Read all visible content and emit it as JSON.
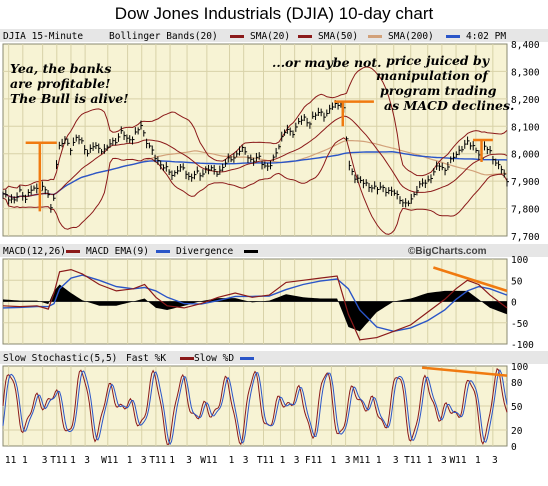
{
  "title": "Dow Jones Industrials (DJIA) 10-day chart",
  "chart_data": [
    {
      "type": "line",
      "panel": "price",
      "legend_text": "DJIA 15-Minute",
      "time_label": "4:02 PM",
      "series": [
        {
          "name": "Bollinger Bands(20)",
          "color": "#8b1a1a"
        },
        {
          "name": "SMA(20)",
          "color": "#8b1a1a"
        },
        {
          "name": "SMA(50)",
          "color": "#d2a17a"
        },
        {
          "name": "SMA(200)",
          "color": "#2a55c8"
        }
      ],
      "ylim": [
        7700,
        8400
      ],
      "y_ticks": [
        "8,400",
        "8,300",
        "8,200",
        "8,100",
        "8,000",
        "7,900",
        "7,800",
        "7,700"
      ],
      "grid": true,
      "annotations": [
        "Yea, the banks",
        "are profitable!",
        "The Bull is alive!",
        "...or maybe not.",
        "price juiced by",
        "manipulation of",
        "program trading",
        "as MACD declines."
      ],
      "price_path": [
        [
          0,
          7850
        ],
        [
          2,
          7840
        ],
        [
          4,
          7830
        ],
        [
          6,
          7860
        ],
        [
          8,
          7840
        ],
        [
          10,
          7870
        ],
        [
          12,
          7870
        ],
        [
          14,
          7880
        ],
        [
          16,
          7850
        ],
        [
          17,
          7790
        ],
        [
          18,
          7850
        ],
        [
          19,
          7980
        ],
        [
          20,
          8030
        ],
        [
          22,
          8050
        ],
        [
          24,
          8020
        ],
        [
          26,
          8060
        ],
        [
          28,
          8040
        ],
        [
          30,
          8000
        ],
        [
          32,
          8030
        ],
        [
          34,
          8020
        ],
        [
          36,
          8010
        ],
        [
          38,
          8040
        ],
        [
          40,
          8050
        ],
        [
          42,
          8080
        ],
        [
          44,
          8050
        ],
        [
          46,
          8060
        ],
        [
          48,
          8090
        ],
        [
          49,
          8110
        ],
        [
          50,
          8060
        ],
        [
          52,
          8020
        ],
        [
          54,
          7980
        ],
        [
          56,
          7960
        ],
        [
          58,
          7940
        ],
        [
          60,
          7920
        ],
        [
          62,
          7950
        ],
        [
          64,
          7940
        ],
        [
          66,
          7910
        ],
        [
          68,
          7930
        ],
        [
          70,
          7920
        ],
        [
          72,
          7950
        ],
        [
          74,
          7940
        ],
        [
          76,
          7930
        ],
        [
          78,
          7960
        ],
        [
          80,
          7980
        ],
        [
          82,
          7990
        ],
        [
          84,
          8020
        ],
        [
          86,
          8000
        ],
        [
          88,
          7970
        ],
        [
          90,
          7990
        ],
        [
          92,
          7960
        ],
        [
          94,
          7950
        ],
        [
          96,
          7990
        ],
        [
          98,
          8050
        ],
        [
          100,
          8090
        ],
        [
          102,
          8070
        ],
        [
          104,
          8110
        ],
        [
          106,
          8130
        ],
        [
          108,
          8110
        ],
        [
          110,
          8140
        ],
        [
          112,
          8150
        ],
        [
          114,
          8140
        ],
        [
          116,
          8170
        ],
        [
          118,
          8180
        ],
        [
          120,
          8190
        ],
        [
          121,
          8100
        ],
        [
          122,
          7960
        ],
        [
          124,
          7920
        ],
        [
          126,
          7900
        ],
        [
          128,
          7890
        ],
        [
          130,
          7880
        ],
        [
          132,
          7870
        ],
        [
          134,
          7880
        ],
        [
          136,
          7860
        ],
        [
          138,
          7860
        ],
        [
          140,
          7840
        ],
        [
          142,
          7810
        ],
        [
          144,
          7830
        ],
        [
          146,
          7870
        ],
        [
          148,
          7890
        ],
        [
          150,
          7900
        ],
        [
          152,
          7930
        ],
        [
          154,
          7960
        ],
        [
          156,
          7940
        ],
        [
          158,
          7970
        ],
        [
          160,
          8000
        ],
        [
          162,
          8020
        ],
        [
          164,
          8040
        ],
        [
          166,
          8030
        ],
        [
          168,
          8000
        ],
        [
          169,
          7970
        ],
        [
          170,
          8030
        ],
        [
          172,
          8010
        ],
        [
          174,
          7960
        ],
        [
          176,
          7950
        ],
        [
          178,
          7900
        ]
      ],
      "orange_marks": [
        {
          "x1": 8,
          "x2": 19,
          "y": 8040
        },
        {
          "x1": 117,
          "x2": 131,
          "y": 8190
        },
        {
          "x1": 166,
          "x2": 173,
          "y": 8050
        }
      ]
    },
    {
      "type": "line",
      "panel": "macd",
      "legend": [
        "MACD(12,26)",
        "MACD EMA(9)",
        "Divergence"
      ],
      "series_colors": [
        "#8b1a1a",
        "#2a55c8",
        "#000000"
      ],
      "ylim": [
        -100,
        100
      ],
      "y_ticks": [
        "100",
        "50",
        "0",
        "-50",
        "-100"
      ],
      "brand": "©BigCharts.com",
      "macd": [
        [
          0,
          -10
        ],
        [
          6,
          -12
        ],
        [
          12,
          -10
        ],
        [
          16,
          -18
        ],
        [
          18,
          20
        ],
        [
          20,
          70
        ],
        [
          24,
          75
        ],
        [
          28,
          65
        ],
        [
          34,
          40
        ],
        [
          40,
          25
        ],
        [
          46,
          30
        ],
        [
          50,
          40
        ],
        [
          54,
          10
        ],
        [
          58,
          -10
        ],
        [
          64,
          -15
        ],
        [
          70,
          -5
        ],
        [
          76,
          10
        ],
        [
          82,
          20
        ],
        [
          88,
          10
        ],
        [
          94,
          15
        ],
        [
          100,
          45
        ],
        [
          106,
          50
        ],
        [
          112,
          55
        ],
        [
          118,
          60
        ],
        [
          122,
          -30
        ],
        [
          126,
          -90
        ],
        [
          132,
          -85
        ],
        [
          138,
          -70
        ],
        [
          144,
          -55
        ],
        [
          150,
          -25
        ],
        [
          156,
          5
        ],
        [
          160,
          30
        ],
        [
          164,
          50
        ],
        [
          168,
          40
        ],
        [
          172,
          15
        ],
        [
          178,
          -15
        ]
      ],
      "signal": [
        [
          0,
          -15
        ],
        [
          6,
          -14
        ],
        [
          12,
          -12
        ],
        [
          16,
          -12
        ],
        [
          18,
          -5
        ],
        [
          20,
          30
        ],
        [
          24,
          55
        ],
        [
          28,
          62
        ],
        [
          34,
          50
        ],
        [
          40,
          35
        ],
        [
          46,
          30
        ],
        [
          50,
          33
        ],
        [
          54,
          25
        ],
        [
          58,
          10
        ],
        [
          64,
          -5
        ],
        [
          70,
          -6
        ],
        [
          76,
          2
        ],
        [
          82,
          12
        ],
        [
          88,
          12
        ],
        [
          94,
          13
        ],
        [
          100,
          28
        ],
        [
          106,
          40
        ],
        [
          112,
          48
        ],
        [
          118,
          53
        ],
        [
          122,
          30
        ],
        [
          126,
          -20
        ],
        [
          132,
          -60
        ],
        [
          138,
          -70
        ],
        [
          144,
          -62
        ],
        [
          150,
          -45
        ],
        [
          156,
          -20
        ],
        [
          160,
          5
        ],
        [
          164,
          25
        ],
        [
          168,
          35
        ],
        [
          172,
          30
        ],
        [
          178,
          15
        ]
      ],
      "orange_mark": {
        "x1": 152,
        "x2": 178,
        "y1": 80,
        "y2": 25
      }
    },
    {
      "type": "line",
      "panel": "stochastic",
      "legend": [
        "Slow Stochastic(5,5)",
        "Fast %K",
        "Slow %D"
      ],
      "series_colors": [
        "#8b1a1a",
        "#2a55c8"
      ],
      "ylim": [
        0,
        100
      ],
      "y_ticks": [
        "100",
        "80",
        "50",
        "20",
        "0"
      ],
      "x_ticks": [
        {
          "x": 2,
          "label": "11"
        },
        {
          "x": 7,
          "label": "1"
        },
        {
          "x": 14,
          "label": "3"
        },
        {
          "x": 19,
          "label": "T11"
        },
        {
          "x": 24,
          "label": "1"
        },
        {
          "x": 29,
          "label": "3"
        },
        {
          "x": 37,
          "label": "W11"
        },
        {
          "x": 44,
          "label": "1"
        },
        {
          "x": 49,
          "label": "3"
        },
        {
          "x": 54,
          "label": "T11"
        },
        {
          "x": 59,
          "label": "1"
        },
        {
          "x": 65,
          "label": "3"
        },
        {
          "x": 72,
          "label": "W11"
        },
        {
          "x": 80,
          "label": "1"
        },
        {
          "x": 85,
          "label": "3"
        },
        {
          "x": 92,
          "label": "T11"
        },
        {
          "x": 98,
          "label": "1"
        },
        {
          "x": 103,
          "label": "3"
        },
        {
          "x": 109,
          "label": "F11"
        },
        {
          "x": 116,
          "label": "1"
        },
        {
          "x": 121,
          "label": "3"
        },
        {
          "x": 126,
          "label": "M11"
        },
        {
          "x": 132,
          "label": "1"
        },
        {
          "x": 138,
          "label": "3"
        },
        {
          "x": 144,
          "label": "T11"
        },
        {
          "x": 150,
          "label": "1"
        },
        {
          "x": 155,
          "label": "3"
        },
        {
          "x": 160,
          "label": "W11"
        },
        {
          "x": 167,
          "label": "1"
        },
        {
          "x": 173,
          "label": "3"
        }
      ],
      "orange_mark": {
        "x1": 148,
        "x2": 178,
        "y1": 98,
        "y2": 88
      }
    }
  ]
}
